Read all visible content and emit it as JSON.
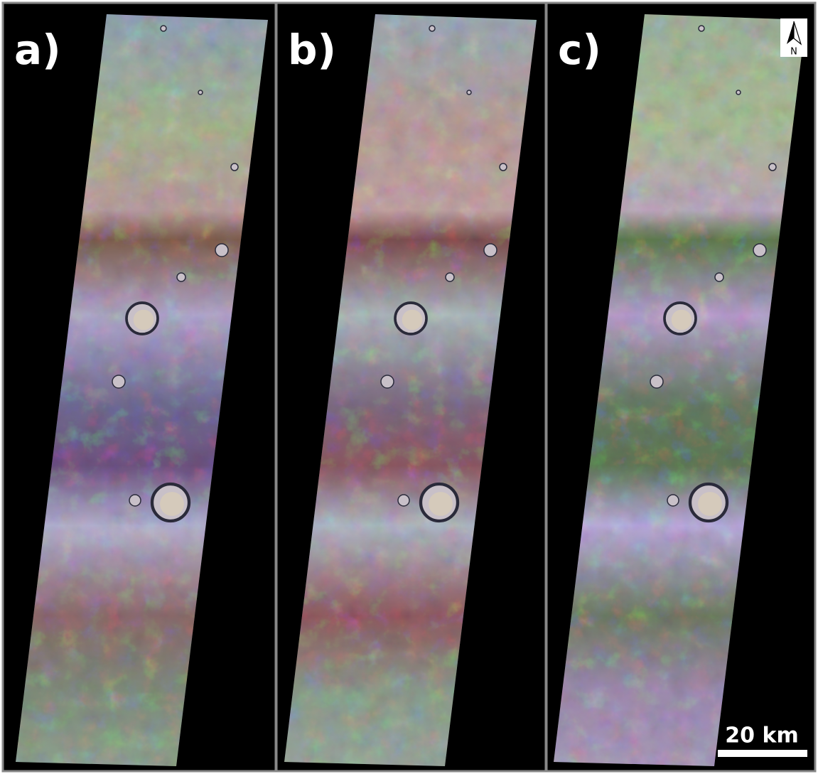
{
  "panels": [
    {
      "label": "a)"
    },
    {
      "label": "b)"
    },
    {
      "label": "c)"
    }
  ],
  "north_arrow": {
    "label": "N"
  },
  "scale_bar": {
    "label": "20 km"
  }
}
